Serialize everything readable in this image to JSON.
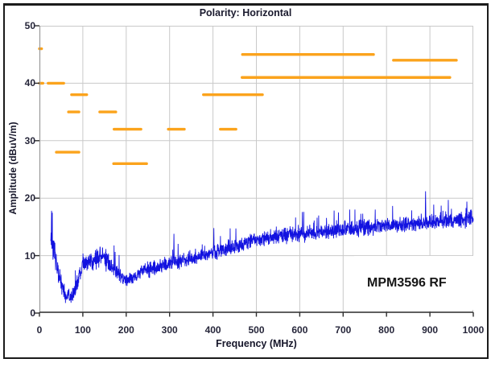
{
  "title": "Polarity: Horizontal",
  "device_label": "MPM3596 RF",
  "colors": {
    "trace": "#1212e0",
    "limit": "#fba31c",
    "grid": "#c9c9c9",
    "axis_y": "#9a9a9a",
    "axis_x": "#5f5f5f",
    "tick": "#2d2d2d",
    "text": "#26263a",
    "frame": "#1b1b1b"
  },
  "chart_data": {
    "type": "line",
    "title": "Polarity: Horizontal",
    "xlabel": "Frequency (MHz)",
    "ylabel": "Amplitude (dBuV/m)",
    "xlim": [
      0,
      1000
    ],
    "ylim": [
      0,
      50
    ],
    "x_ticks": [
      0,
      100,
      200,
      300,
      400,
      500,
      600,
      700,
      800,
      900,
      1000
    ],
    "y_ticks": [
      0,
      10,
      20,
      30,
      40,
      50
    ],
    "grid": true,
    "legend": "none",
    "series": [
      {
        "name": "radiated-emissions-trace",
        "kind": "noisy-line",
        "color": "#1212e0",
        "start_mhz": 26,
        "step_mhz": 0.4,
        "noise_seed": 1337,
        "envelope_freq_center_spread": [
          [
            26,
            13.5,
            4.5
          ],
          [
            33,
            11.5,
            4.0
          ],
          [
            40,
            8.5,
            3.5
          ],
          [
            50,
            5.0,
            2.5
          ],
          [
            60,
            3.2,
            1.8
          ],
          [
            70,
            2.8,
            1.6
          ],
          [
            78,
            3.2,
            1.8
          ],
          [
            88,
            5.2,
            2.2
          ],
          [
            100,
            8.3,
            2.3
          ],
          [
            115,
            9.0,
            2.4
          ],
          [
            130,
            9.6,
            2.5
          ],
          [
            145,
            9.9,
            2.7
          ],
          [
            160,
            9.0,
            2.4
          ],
          [
            175,
            7.6,
            2.0
          ],
          [
            195,
            5.8,
            1.6
          ],
          [
            215,
            6.3,
            1.8
          ],
          [
            235,
            7.3,
            2.0
          ],
          [
            260,
            8.0,
            2.0
          ],
          [
            285,
            8.4,
            1.8
          ],
          [
            310,
            8.8,
            1.8
          ],
          [
            340,
            9.3,
            1.8
          ],
          [
            370,
            9.9,
            1.8
          ],
          [
            400,
            10.5,
            1.9
          ],
          [
            430,
            11.2,
            1.9
          ],
          [
            460,
            11.8,
            1.9
          ],
          [
            500,
            12.9,
            1.9
          ],
          [
            550,
            13.4,
            1.9
          ],
          [
            600,
            13.9,
            1.9
          ],
          [
            650,
            14.1,
            1.9
          ],
          [
            700,
            14.6,
            1.9
          ],
          [
            750,
            14.9,
            2.0
          ],
          [
            800,
            15.2,
            2.0
          ],
          [
            850,
            15.5,
            2.0
          ],
          [
            900,
            15.8,
            2.1
          ],
          [
            950,
            16.2,
            2.2
          ],
          [
            1000,
            16.6,
            2.3
          ]
        ],
        "spikes_freq_value": [
          [
            28,
            17.8
          ],
          [
            310,
            13.8
          ],
          [
            402,
            14.8
          ],
          [
            640,
            16.6
          ],
          [
            745,
            17.3
          ],
          [
            890,
            21.2
          ],
          [
            985,
            19.4
          ]
        ]
      },
      {
        "name": "limit-segments",
        "kind": "horizontal-segments",
        "color": "#fba31c",
        "segments_f1_f2_db": [
          [
            0,
            5,
            46
          ],
          [
            0,
            8,
            40
          ],
          [
            20,
            56,
            40
          ],
          [
            74,
            109,
            38
          ],
          [
            67,
            91,
            35
          ],
          [
            139,
            176,
            35
          ],
          [
            39,
            91,
            28
          ],
          [
            172,
            234,
            32
          ],
          [
            171,
            247,
            26
          ],
          [
            297,
            334,
            32
          ],
          [
            417,
            453,
            32
          ],
          [
            378,
            514,
            38
          ],
          [
            468,
            770,
            45
          ],
          [
            467,
            946,
            41
          ],
          [
            816,
            961,
            44
          ]
        ]
      }
    ]
  }
}
